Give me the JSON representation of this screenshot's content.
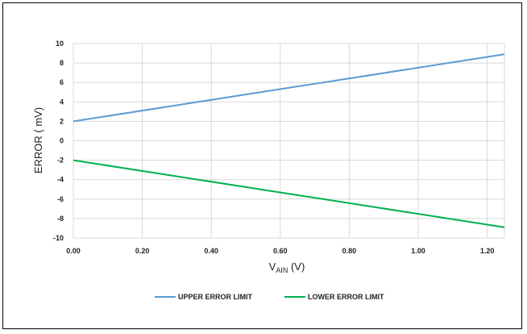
{
  "chart_data": {
    "type": "line",
    "ylabel": "ERROR ( mV)",
    "xlabel_main": "V",
    "xlabel_sub": "AIN",
    "xlabel_unit": " (V)",
    "xlim": [
      0,
      1.25
    ],
    "ylim": [
      -10,
      10
    ],
    "x_ticks": [
      "0.00",
      "0.20",
      "0.40",
      "0.60",
      "0.80",
      "1.00",
      "1.20"
    ],
    "x_tick_values": [
      0,
      0.2,
      0.4,
      0.6,
      0.8,
      1.0,
      1.2
    ],
    "y_ticks": [
      "10",
      "8",
      "6",
      "4",
      "2",
      "0",
      "-2",
      "-4",
      "-6",
      "-8",
      "-10"
    ],
    "y_tick_values": [
      10,
      8,
      6,
      4,
      2,
      0,
      -2,
      -4,
      -6,
      -8,
      -10
    ],
    "grid": true,
    "legend_position": "bottom",
    "series": [
      {
        "name": "UPPER ERROR LIMIT",
        "color": "#5b9bd5",
        "x": [
          0,
          1.25
        ],
        "y": [
          2.0,
          8.9
        ]
      },
      {
        "name": "LOWER ERROR LIMIT",
        "color": "#00b050",
        "x": [
          0,
          1.25
        ],
        "y": [
          -2.0,
          -8.9
        ]
      }
    ]
  }
}
